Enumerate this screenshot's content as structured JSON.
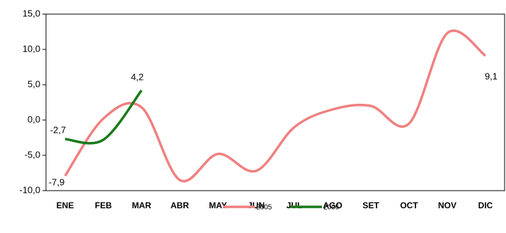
{
  "chart_data": {
    "type": "line",
    "categories": [
      "ENE",
      "FEB",
      "MAR",
      "ABR",
      "MAY",
      "JUN",
      "JUL",
      "AGO",
      "SET",
      "OCT",
      "NOV",
      "DIC"
    ],
    "series": [
      {
        "name": "2005",
        "color": "#f08080",
        "values": [
          -7.9,
          0.2,
          1.8,
          -8.5,
          -4.8,
          -7.2,
          -1.0,
          1.5,
          2.0,
          -0.5,
          12.3,
          9.1
        ],
        "value_labels": [
          "-7,9",
          null,
          null,
          null,
          null,
          null,
          null,
          null,
          null,
          null,
          null,
          "9,1"
        ]
      },
      {
        "name": "2006",
        "color": "#1a7a1a",
        "values": [
          -2.7,
          -2.8,
          4.2,
          null,
          null,
          null,
          null,
          null,
          null,
          null,
          null,
          null
        ],
        "value_labels": [
          "-2,7",
          null,
          "4,2",
          null,
          null,
          null,
          null,
          null,
          null,
          null,
          null,
          null
        ]
      }
    ],
    "ylim": [
      -10,
      15
    ],
    "yticks": [
      {
        "value": -10,
        "label": "-10,0"
      },
      {
        "value": -5,
        "label": "-5,0"
      },
      {
        "value": 0,
        "label": "0,0"
      },
      {
        "value": 5,
        "label": "5,0"
      },
      {
        "value": 10,
        "label": "10,0"
      },
      {
        "value": 15,
        "label": "15,0"
      }
    ],
    "grid": false,
    "legend": "bottom"
  }
}
